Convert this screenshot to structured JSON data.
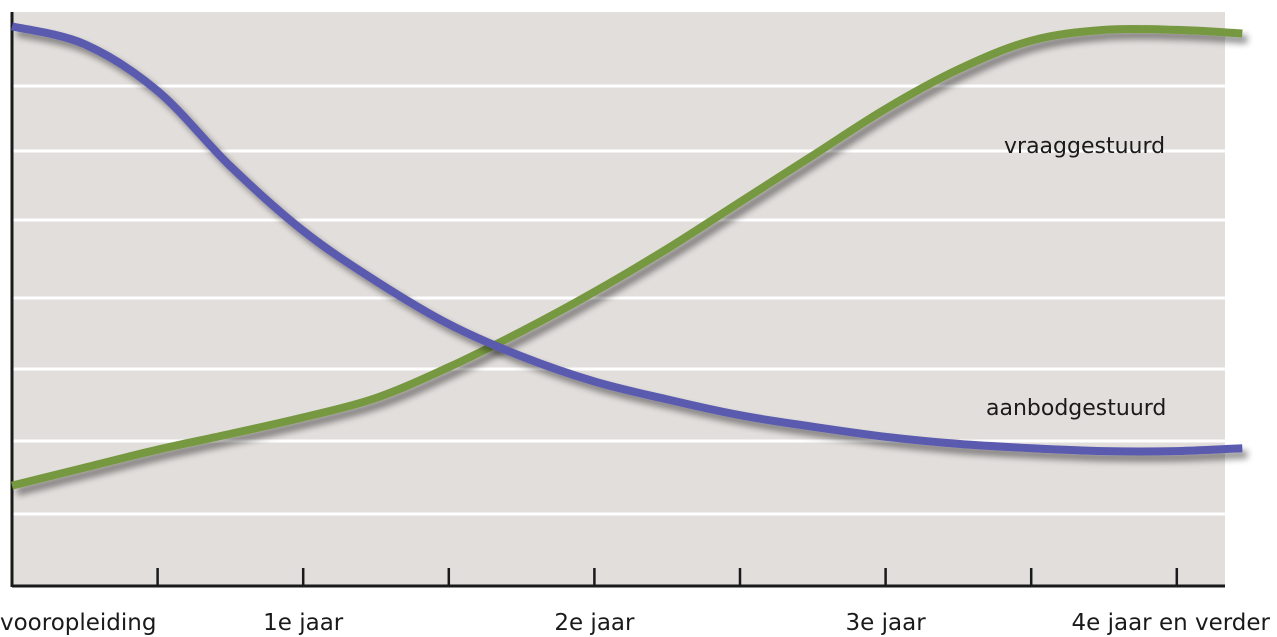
{
  "chart_data": {
    "type": "line",
    "title": "",
    "xlabel": "",
    "ylabel": "",
    "x_positions": [
      0,
      1,
      2,
      3,
      4,
      5,
      6,
      7,
      8
    ],
    "x_tick_labels": [
      {
        "pos": 0,
        "label": "vooropleiding"
      },
      {
        "pos": 2,
        "label": "1e jaar"
      },
      {
        "pos": 4,
        "label": "2e jaar"
      },
      {
        "pos": 6,
        "label": "3e jaar"
      },
      {
        "pos": 8,
        "label": "4e jaar en verder"
      }
    ],
    "xlim": [
      0,
      8.45
    ],
    "ylim": [
      0,
      8
    ],
    "grid": "horizontal",
    "series": [
      {
        "name": "aanbodgestuurd",
        "color": "#5a5aaf",
        "x": [
          0,
          0.5,
          1,
          1.5,
          2,
          2.5,
          3,
          3.5,
          4,
          4.5,
          5,
          5.5,
          6,
          6.5,
          7,
          7.5,
          8,
          8.45
        ],
        "y": [
          7.8,
          7.55,
          6.9,
          5.85,
          4.95,
          4.25,
          3.65,
          3.2,
          2.85,
          2.6,
          2.38,
          2.22,
          2.08,
          1.98,
          1.92,
          1.88,
          1.88,
          1.92
        ]
      },
      {
        "name": "vraaggestuurd",
        "color": "#76983f",
        "x": [
          0,
          0.5,
          1,
          1.5,
          2,
          2.5,
          3,
          3.5,
          4,
          4.5,
          5,
          5.5,
          6,
          6.5,
          7,
          7.5,
          8,
          8.45
        ],
        "y": [
          1.4,
          1.65,
          1.9,
          2.12,
          2.35,
          2.62,
          3.05,
          3.55,
          4.1,
          4.7,
          5.35,
          6.0,
          6.65,
          7.2,
          7.6,
          7.75,
          7.75,
          7.7
        ]
      }
    ]
  }
}
